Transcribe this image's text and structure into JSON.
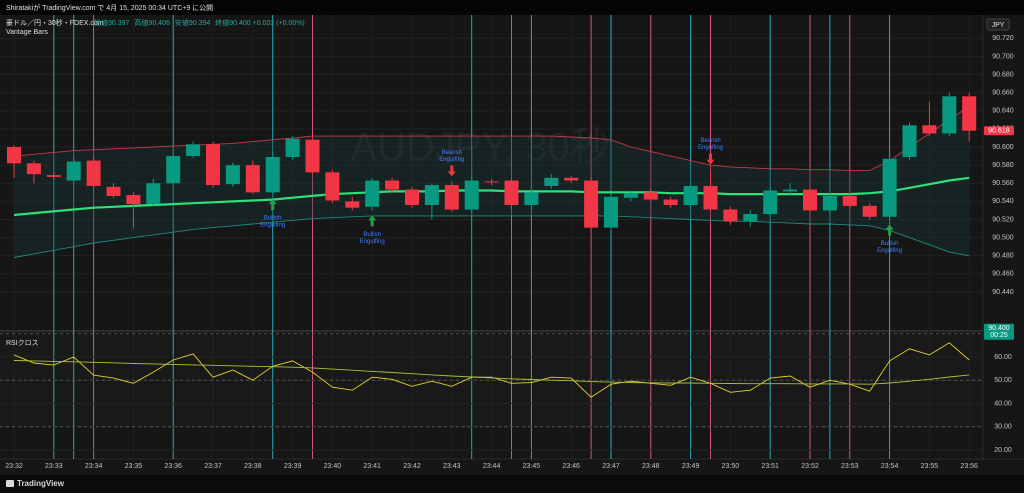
{
  "header": {
    "title": "Shiratakiが TradingView.com で 4月 15, 2025 00:34 UTC+9 に公開",
    "symbol": "豪ドル／円・30秒・FDEX.com",
    "ohlc": [
      "始値90.397",
      "高値90.406",
      "安値90.394",
      "終値90.400 +0.002 (+0.00%)"
    ],
    "indicator": "Vantage Bars",
    "currency": "JPY",
    "footer": "TradingView"
  },
  "chart_data": [
    {
      "type": "candlestick",
      "watermark": "AUDJPY, 30秒",
      "categories": [
        "23:32",
        null,
        "23:33",
        null,
        "23:34",
        null,
        "23:35",
        null,
        "23:36",
        null,
        "23:37",
        null,
        "23:38",
        null,
        "23:39",
        null,
        "23:40",
        null,
        "23:41",
        null,
        "23:42",
        null,
        "23:43",
        null,
        "23:44",
        null,
        "23:45",
        null,
        "23:46",
        null,
        "23:47",
        null,
        "23:48",
        null,
        "23:49",
        null,
        "23:50",
        null,
        "23:51",
        null,
        "23:52",
        null,
        "23:53",
        null,
        "23:54",
        null,
        "23:55",
        null,
        "23:56"
      ],
      "open": [
        90.6,
        90.582,
        90.569,
        90.563,
        90.585,
        90.556,
        90.547,
        90.537,
        90.56,
        90.59,
        90.603,
        90.559,
        90.58,
        90.55,
        90.589,
        90.608,
        90.572,
        90.54,
        90.534,
        90.563,
        90.553,
        90.536,
        90.558,
        90.531,
        90.562,
        90.563,
        90.536,
        90.557,
        90.566,
        90.563,
        90.511,
        90.544,
        90.55,
        90.542,
        90.536,
        90.557,
        90.531,
        90.518,
        90.526,
        90.551,
        90.553,
        90.53,
        90.546,
        90.535,
        90.523,
        90.589,
        90.624,
        90.615,
        90.656
      ],
      "high": [
        90.602,
        90.585,
        90.572,
        90.588,
        90.59,
        90.56,
        90.55,
        90.565,
        90.594,
        90.606,
        90.606,
        90.583,
        90.585,
        90.594,
        90.612,
        90.612,
        90.575,
        90.545,
        90.566,
        90.566,
        90.556,
        90.56,
        90.562,
        90.567,
        90.565,
        90.566,
        90.556,
        90.57,
        90.568,
        90.567,
        90.548,
        90.552,
        90.553,
        90.545,
        90.56,
        90.575,
        90.534,
        90.53,
        90.556,
        90.56,
        90.556,
        90.549,
        90.549,
        90.538,
        90.59,
        90.627,
        90.65,
        90.66,
        90.66
      ],
      "low": [
        90.566,
        90.56,
        90.565,
        90.56,
        90.555,
        90.544,
        90.51,
        90.535,
        90.558,
        90.588,
        90.555,
        90.556,
        90.548,
        90.548,
        90.586,
        90.57,
        90.538,
        90.53,
        90.53,
        90.55,
        90.533,
        90.52,
        90.528,
        90.528,
        90.558,
        90.532,
        90.532,
        90.554,
        90.56,
        90.509,
        90.508,
        90.54,
        90.54,
        90.533,
        90.533,
        90.528,
        90.514,
        90.512,
        90.523,
        90.548,
        90.527,
        90.527,
        90.532,
        90.52,
        90.52,
        90.586,
        90.612,
        90.612,
        90.606
      ],
      "close": [
        90.582,
        90.57,
        90.567,
        90.584,
        90.557,
        90.546,
        90.537,
        90.56,
        90.59,
        90.603,
        90.558,
        90.58,
        90.55,
        90.589,
        90.609,
        90.572,
        90.541,
        90.533,
        90.563,
        90.553,
        90.536,
        90.558,
        90.531,
        90.563,
        90.561,
        90.536,
        90.55,
        90.566,
        90.563,
        90.511,
        90.545,
        90.549,
        90.542,
        90.536,
        90.557,
        90.531,
        90.518,
        90.526,
        90.552,
        90.553,
        90.53,
        90.546,
        90.535,
        90.523,
        90.587,
        90.624,
        90.615,
        90.656,
        90.618
      ],
      "up_color": "#089981",
      "down_color": "#f23645",
      "bands": {
        "upper": {
          "color": "#c2394a",
          "values": [
            90.59,
            90.592,
            90.594,
            90.596,
            90.597,
            90.598,
            90.599,
            90.6,
            90.601,
            90.602,
            90.603,
            90.604,
            90.606,
            90.608,
            90.61,
            90.612,
            90.612,
            90.612,
            90.612,
            90.612,
            90.612,
            90.612,
            90.612,
            90.612,
            90.612,
            90.612,
            90.612,
            90.612,
            90.611,
            90.61,
            90.608,
            90.6,
            90.595,
            90.59,
            90.585,
            90.58,
            90.578,
            90.577,
            90.576,
            90.576,
            90.575,
            90.575,
            90.574,
            90.574,
            90.585,
            90.6,
            90.615,
            90.63,
            90.645
          ]
        },
        "middle": {
          "color": "#2ee07a",
          "values": [
            90.525,
            90.527,
            90.529,
            90.531,
            90.533,
            90.534,
            90.535,
            90.536,
            90.537,
            90.538,
            90.539,
            90.54,
            90.541,
            90.542,
            90.544,
            90.546,
            90.548,
            90.549,
            90.55,
            90.551,
            90.551,
            90.551,
            90.552,
            90.552,
            90.552,
            90.551,
            90.551,
            90.551,
            90.551,
            90.55,
            90.55,
            90.55,
            90.55,
            90.549,
            90.549,
            90.549,
            90.548,
            90.548,
            90.548,
            90.548,
            90.548,
            90.548,
            90.548,
            90.549,
            90.551,
            90.555,
            90.559,
            90.563,
            90.566
          ]
        },
        "lower": {
          "color": "#1f8a7a",
          "values": [
            90.478,
            90.482,
            90.486,
            90.49,
            90.494,
            90.497,
            90.5,
            90.503,
            90.506,
            90.509,
            90.511,
            90.513,
            90.515,
            90.517,
            90.519,
            90.521,
            90.522,
            90.523,
            90.524,
            90.524,
            90.524,
            90.524,
            90.524,
            90.524,
            90.524,
            90.524,
            90.524,
            90.524,
            90.524,
            90.524,
            90.524,
            90.523,
            90.522,
            90.521,
            90.52,
            90.519,
            90.518,
            90.518,
            90.517,
            90.516,
            90.515,
            90.515,
            90.514,
            90.513,
            90.508,
            90.5,
            90.492,
            90.484,
            90.48
          ]
        }
      },
      "highlights": [
        null,
        null,
        "#26c6da",
        "#26c6da",
        "#f06292",
        null,
        null,
        null,
        "#26c6da",
        null,
        null,
        null,
        null,
        "#26c6da",
        null,
        "#f06292",
        null,
        null,
        null,
        null,
        null,
        null,
        null,
        "#26c6da",
        null,
        "#f06292",
        "#26c6da",
        null,
        null,
        "#f06292",
        "#26c6da",
        null,
        "#f06292",
        null,
        "#26c6da",
        "#f06292",
        null,
        null,
        "#26c6da",
        null,
        "#f06292",
        "#26c6da",
        "#f06292",
        null,
        "#26c6da",
        null,
        null,
        null,
        null
      ],
      "signals": [
        null,
        null,
        null,
        null,
        null,
        null,
        null,
        null,
        null,
        null,
        null,
        null,
        null,
        {
          "lines": [
            "Bullish",
            "Engulfing"
          ],
          "position": "below"
        },
        null,
        null,
        null,
        null,
        {
          "lines": [
            "Bullish",
            "Engulfing"
          ],
          "position": "below"
        },
        null,
        null,
        null,
        {
          "lines": [
            "Bearish",
            "Engulfing"
          ],
          "position": "above"
        },
        null,
        null,
        null,
        null,
        null,
        null,
        null,
        null,
        null,
        null,
        null,
        null,
        {
          "lines": [
            "Bearish",
            "Engulfing"
          ],
          "position": "above"
        },
        null,
        null,
        null,
        null,
        null,
        null,
        null,
        null,
        {
          "lines": [
            "Bullish",
            "Engulfing"
          ],
          "position": "below"
        },
        null,
        null,
        null,
        null
      ],
      "ylim": [
        90.398,
        90.738
      ],
      "yticks": [
        {
          "value": 90.72,
          "label": "90.720"
        },
        {
          "value": 90.7,
          "label": "90.700"
        },
        {
          "value": 90.68,
          "label": "90.680"
        },
        {
          "value": 90.66,
          "label": "90.660"
        },
        {
          "value": 90.64,
          "label": "90.640"
        },
        {
          "value": 90.62,
          "label": "90.620"
        },
        {
          "value": 90.6,
          "label": "90.600"
        },
        {
          "value": 90.58,
          "label": "90.580"
        },
        {
          "value": 90.56,
          "label": "90.560"
        },
        {
          "value": 90.54,
          "label": "90.540"
        },
        {
          "value": 90.52,
          "label": "90.520"
        },
        {
          "value": 90.5,
          "label": "90.500"
        },
        {
          "value": 90.48,
          "label": "90.480"
        },
        {
          "value": 90.46,
          "label": "90.460"
        },
        {
          "value": 90.44,
          "label": "90.440"
        }
      ],
      "price_tags": [
        {
          "price": 90.618,
          "color": "#f23645"
        },
        {
          "price": {
            "value": 90.4,
            "label": "90.400"
          },
          "countdown": "00:25",
          "color": "#089981"
        }
      ],
      "grid": true
    },
    {
      "type": "line",
      "title": "RSIクロス",
      "series": [
        {
          "color": "#e3d22c",
          "values": [
            60.9,
            57.4,
            56.5,
            60.0,
            52.2,
            50.9,
            48.7,
            53.5,
            58.7,
            61.3,
            51.3,
            54.4,
            50.0,
            56.0,
            58.3,
            53.5,
            47.0,
            45.7,
            51.3,
            50.4,
            47.4,
            49.6,
            47.4,
            51.3,
            51.3,
            48.7,
            49.0,
            51.3,
            50.9,
            42.7,
            48.3,
            49.6,
            48.7,
            47.8,
            51.3,
            48.7,
            44.8,
            45.7,
            50.9,
            51.8,
            47.0,
            50.0,
            48.3,
            45.3,
            58.3,
            63.5,
            60.9,
            66.1,
            58.7
          ]
        },
        {
          "color": "#a9c437",
          "values": [
            58.5,
            58.3,
            58.1,
            57.9,
            57.7,
            57.5,
            57.2,
            57.0,
            56.8,
            56.6,
            56.4,
            56.2,
            56.0,
            55.8,
            55.6,
            55.3,
            54.8,
            54.3,
            53.8,
            53.3,
            52.8,
            52.3,
            51.8,
            51.4,
            51.0,
            50.6,
            50.3,
            50.0,
            49.8,
            49.4,
            49.2,
            49.0,
            48.9,
            48.8,
            48.8,
            48.7,
            48.6,
            48.5,
            48.5,
            48.5,
            48.4,
            48.4,
            48.4,
            48.3,
            48.8,
            49.6,
            50.4,
            51.4,
            52.3
          ]
        }
      ],
      "levels": [
        70,
        50,
        30
      ],
      "ylim": [
        17,
        70.3
      ],
      "yticks": [
        {
          "value": 60,
          "label": "60.00"
        },
        {
          "value": 50,
          "label": "50.00"
        },
        {
          "value": 40,
          "label": "40.00"
        },
        {
          "value": 30,
          "label": "30.00"
        },
        {
          "value": 20,
          "label": "20.00"
        }
      ],
      "grid": true
    }
  ]
}
